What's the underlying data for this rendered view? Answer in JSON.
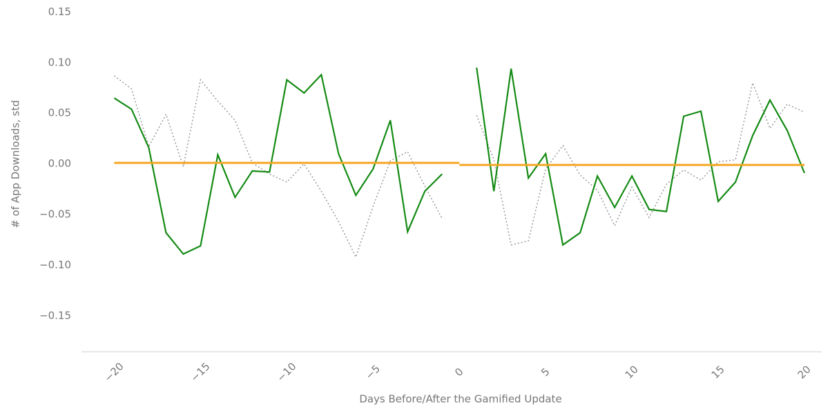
{
  "chart_data": {
    "type": "line",
    "xlabel": "Days Before/After the Gamified Update",
    "ylabel": "# of App Downloads, std",
    "xlim": [
      -21.9,
      21
    ],
    "ylim": [
      -0.1855,
      0.155
    ],
    "xticks": [
      {
        "value": -20,
        "label": "−20"
      },
      {
        "value": -15,
        "label": "−15"
      },
      {
        "value": -10,
        "label": "−10"
      },
      {
        "value": -5,
        "label": "−5"
      },
      0,
      5,
      10,
      15,
      20
    ],
    "yticks": [
      {
        "value": -0.15,
        "label": "−0.15"
      },
      {
        "value": -0.1,
        "label": "−0.10"
      },
      {
        "value": -0.05,
        "label": "−0.05"
      },
      {
        "value": 0,
        "label": "0.00"
      },
      0.05,
      {
        "value": 0.1,
        "label": "0.10"
      },
      0.15
    ],
    "grid": false,
    "series": [
      {
        "color": "#999999",
        "style": "dotted",
        "x": [
          -20,
          -19,
          -18,
          -17,
          -16,
          -15,
          -14,
          -13,
          -12,
          -11,
          -10,
          -9,
          -8,
          -7,
          -6,
          -5,
          -4,
          -3,
          -2,
          -1,
          0,
          1,
          2,
          3,
          4,
          5,
          6,
          7,
          8,
          9,
          10,
          11,
          12,
          13,
          14,
          15,
          16,
          17,
          18,
          19,
          20
        ],
        "values": [
          0.087,
          0.074,
          0.017,
          0.049,
          -0.003,
          0.083,
          0.062,
          0.043,
          0.001,
          -0.01,
          -0.018,
          0.0,
          -0.027,
          -0.057,
          -0.092,
          -0.042,
          0.003,
          0.012,
          -0.022,
          -0.054,
          null,
          0.048,
          0.004,
          -0.08,
          -0.076,
          -0.005,
          0.018,
          -0.011,
          -0.026,
          -0.061,
          -0.023,
          -0.053,
          -0.02,
          -0.006,
          -0.016,
          0.002,
          0.004,
          0.08,
          0.035,
          0.059,
          0.051
        ]
      },
      {
        "color": "#138a13",
        "style": "solid",
        "x": [
          -20,
          -19,
          -18,
          -17,
          -16,
          -15,
          -14,
          -13,
          -12,
          -11,
          -10,
          -9,
          -8,
          -7,
          -6,
          -5,
          -4,
          -3,
          -2,
          -1,
          0,
          1,
          2,
          3,
          4,
          5,
          6,
          7,
          8,
          9,
          10,
          11,
          12,
          13,
          14,
          15,
          16,
          17,
          18,
          19,
          20
        ],
        "values": [
          0.065,
          0.054,
          0.016,
          -0.068,
          -0.089,
          -0.081,
          0.009,
          -0.033,
          -0.007,
          -0.008,
          0.083,
          0.07,
          0.088,
          0.01,
          -0.031,
          -0.005,
          0.043,
          -0.067,
          -0.027,
          -0.01,
          null,
          0.095,
          -0.027,
          0.094,
          -0.014,
          0.01,
          -0.08,
          -0.068,
          -0.012,
          -0.043,
          -0.012,
          -0.045,
          -0.047,
          0.047,
          0.052,
          -0.037,
          -0.018,
          0.028,
          0.063,
          0.033,
          -0.009
        ]
      },
      {
        "color": "#f5a623",
        "style": "solid",
        "x": [
          -20,
          0,
          0,
          0,
          20
        ],
        "values": [
          0.001,
          0.001,
          null,
          -0.001,
          -0.001
        ]
      }
    ]
  }
}
